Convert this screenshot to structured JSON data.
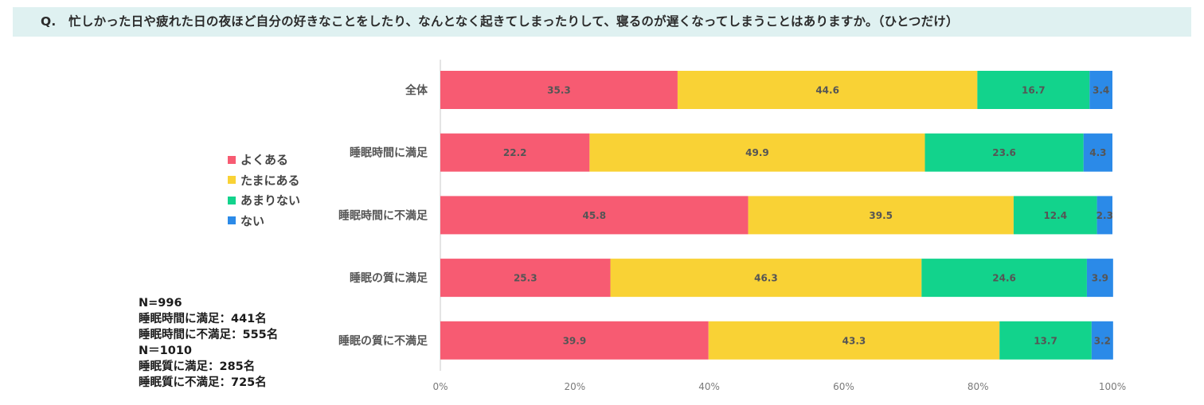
{
  "question": "Q.　忙しかった日や疲れた日の夜ほど自分の好きなことをしたり、なんとなく起きてしまったりして、寝るのが遅くなってしまうことはありますか。（ひとつだけ）",
  "legend": [
    {
      "label": "よくある",
      "color": "#f75b72"
    },
    {
      "label": "たまにある",
      "color": "#f9d235"
    },
    {
      "label": "あまりない",
      "color": "#12d38c"
    },
    {
      "label": "ない",
      "color": "#2b8ae8"
    }
  ],
  "notes": [
    "N=996",
    "睡眠時間に満足：441名",
    "睡眠時間に不満足：555名",
    "N＝1010",
    "睡眠質に満足：285名",
    "睡眠質に不満足：725名"
  ],
  "chart_data": {
    "type": "bar",
    "orientation": "horizontal",
    "stacked": true,
    "percent": true,
    "categories": [
      "全体",
      "睡眠時間に満足",
      "睡眠時間に不満足",
      "睡眠の質に満足",
      "睡眠の質に不満足"
    ],
    "series": [
      {
        "name": "よくある",
        "color": "#f75b72",
        "values": [
          35.3,
          22.2,
          45.8,
          25.3,
          39.9
        ]
      },
      {
        "name": "たまにある",
        "color": "#f9d235",
        "values": [
          44.6,
          49.9,
          39.5,
          46.3,
          43.3
        ]
      },
      {
        "name": "あまりない",
        "color": "#12d38c",
        "values": [
          16.7,
          23.6,
          12.4,
          24.6,
          13.7
        ]
      },
      {
        "name": "ない",
        "color": "#2b8ae8",
        "values": [
          3.4,
          4.3,
          2.3,
          3.9,
          3.2
        ]
      }
    ],
    "xlim": [
      0,
      100
    ],
    "xticks": [
      "0%",
      "20%",
      "40%",
      "60%",
      "80%",
      "100%"
    ],
    "legend_position": "left"
  }
}
